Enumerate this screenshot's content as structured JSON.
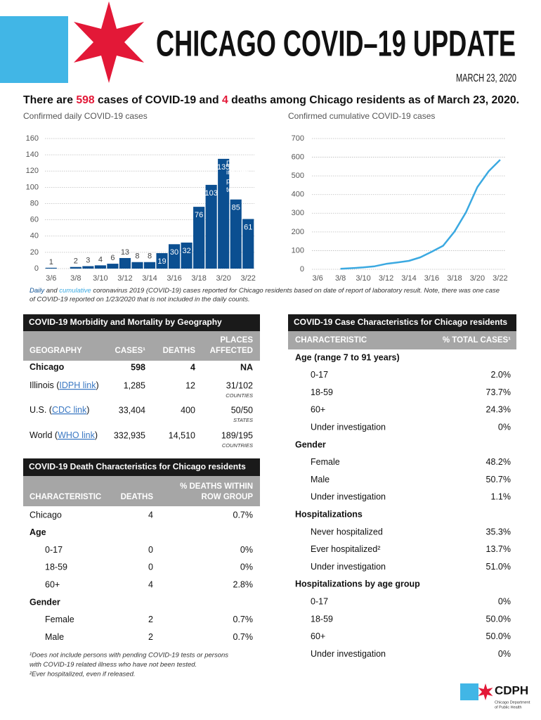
{
  "header": {
    "title": "CHICAGO COVID–19 UPDATE",
    "date": "MARCH 23, 2020"
  },
  "summary": [
    "There are ",
    "598",
    " cases of COVID-19 and ",
    "4",
    " deaths among Chicago residents as of March 23, 2020."
  ],
  "chart_data": [
    {
      "type": "bar",
      "title": "Confirmed daily COVID-19 cases",
      "categories": [
        "3/6",
        null,
        "3/8",
        null,
        "3/10",
        null,
        "3/12",
        null,
        "3/14",
        null,
        "3/16",
        null,
        "3/18",
        null,
        "3/20",
        null,
        "3/22"
      ],
      "values": [
        1,
        0,
        2,
        3,
        4,
        6,
        13,
        8,
        8,
        19,
        30,
        32,
        76,
        103,
        135,
        85,
        61
      ],
      "color": "#0b4f91",
      "ylim": [
        0,
        160
      ],
      "yticks": [
        0,
        20,
        40,
        60,
        80,
        100,
        120,
        140,
        160
      ],
      "grid": true,
      "annotation": [
        "Does not",
        "include",
        "pending",
        "tests"
      ]
    },
    {
      "type": "line",
      "title": "Confirmed cumulative COVID-19 cases",
      "categories": [
        "3/6",
        null,
        "3/8",
        null,
        "3/10",
        null,
        "3/12",
        null,
        "3/14",
        null,
        "3/16",
        null,
        "3/18",
        null,
        "3/20",
        null,
        "3/22"
      ],
      "values": [
        null,
        null,
        3,
        6,
        10,
        16,
        29,
        37,
        45,
        64,
        94,
        126,
        202,
        305,
        440,
        525,
        586
      ],
      "color": "#3ba9e1",
      "ylim": [
        0,
        700
      ],
      "yticks": [
        0,
        100,
        200,
        300,
        400,
        500,
        600,
        700
      ],
      "grid": true
    }
  ],
  "chart_note": {
    "line1": [
      "Daily",
      " and ",
      "cumulative",
      " coronavirus 2019 (COVID-19) cases reported for Chicago residents based on date of report of laboratory result. Note, there was one case"
    ],
    "line2": "of COVID-19 reported on 1/23/2020 that is not included in the daily counts."
  },
  "geography_table": {
    "title": "COVID-19 Morbidity and Mortality by Geography",
    "headers": [
      [
        "GEOGRAPHY"
      ],
      [
        "CASES¹"
      ],
      [
        "DEATHS"
      ],
      [
        "PLACES",
        "AFFECTED"
      ]
    ],
    "rows": [
      {
        "name": [
          "Chicago"
        ],
        "cells": [
          "598",
          "4",
          "NA"
        ]
      },
      {
        "name": [
          "Illinois (",
          "IDPH link",
          ")"
        ],
        "cells": [
          "1,285",
          "12",
          "31/102"
        ],
        "unit": "COUNTIES"
      },
      {
        "name": [
          "U.S. (",
          "CDC link",
          ")"
        ],
        "cells": [
          "33,404",
          "400",
          "50/50"
        ],
        "unit": "STATES"
      },
      {
        "name": [
          "World (",
          "WHO link",
          ")"
        ],
        "cells": [
          "332,935",
          "14,510",
          "189/195"
        ],
        "unit": "COUNTRIES"
      }
    ]
  },
  "death_table": {
    "title": "COVID-19 Death Characteristics for Chicago residents",
    "headers": [
      [
        "CHARACTERISTIC"
      ],
      [
        "DEATHS"
      ],
      [
        "% DEATHS WITHIN",
        "ROW GROUP"
      ]
    ],
    "rows": [
      {
        "cells": [
          "Chicago",
          "4",
          "0.7%"
        ]
      },
      {
        "label": "Age",
        "rows": [
          [
            "0-17",
            "0",
            "0%"
          ],
          [
            "18-59",
            "0",
            "0%"
          ],
          [
            "60+",
            "4",
            "2.8%"
          ]
        ]
      },
      {
        "label": "Gender",
        "rows": [
          [
            "Female",
            "2",
            "0.7%"
          ],
          [
            "Male",
            "2",
            "0.7%"
          ]
        ]
      }
    ]
  },
  "case_table": {
    "title": "COVID-19 Case Characteristics for Chicago residents",
    "headers": [
      "CHARACTERISTIC",
      "% TOTAL CASES¹"
    ],
    "groups": [
      {
        "label": "Age (range 7 to 91 years)",
        "rows": [
          [
            "0-17",
            "2.0%"
          ],
          [
            "18-59",
            "73.7%"
          ],
          [
            "60+",
            "24.3%"
          ],
          [
            "Under investigation",
            "0%"
          ]
        ]
      },
      {
        "label": "Gender",
        "rows": [
          [
            "Female",
            "48.2%"
          ],
          [
            "Male",
            "50.7%"
          ],
          [
            "Under investigation",
            "1.1%"
          ]
        ]
      },
      {
        "label": "Hospitalizations",
        "rows": [
          [
            "Never hospitalized",
            "35.3%"
          ],
          [
            "Ever hospitalized²",
            "13.7%"
          ],
          [
            "Under investigation",
            "51.0%"
          ]
        ]
      },
      {
        "label": "Hospitalizations by age group",
        "rows": [
          [
            "0-17",
            "0%"
          ],
          [
            "18-59",
            "50.0%"
          ],
          [
            "60+",
            "50.0%"
          ],
          [
            "Under investigation",
            "0%"
          ]
        ]
      }
    ]
  },
  "footnotes": [
    [
      "¹Does not include persons with pending COVID-19 tests or persons",
      "with COVID-19 related illness who have not been tested."
    ],
    [
      "²Ever hospitalized, even if released."
    ]
  ],
  "logo": {
    "name": "CDPH",
    "lines": [
      "Chicago Department",
      "of Public Health"
    ]
  }
}
